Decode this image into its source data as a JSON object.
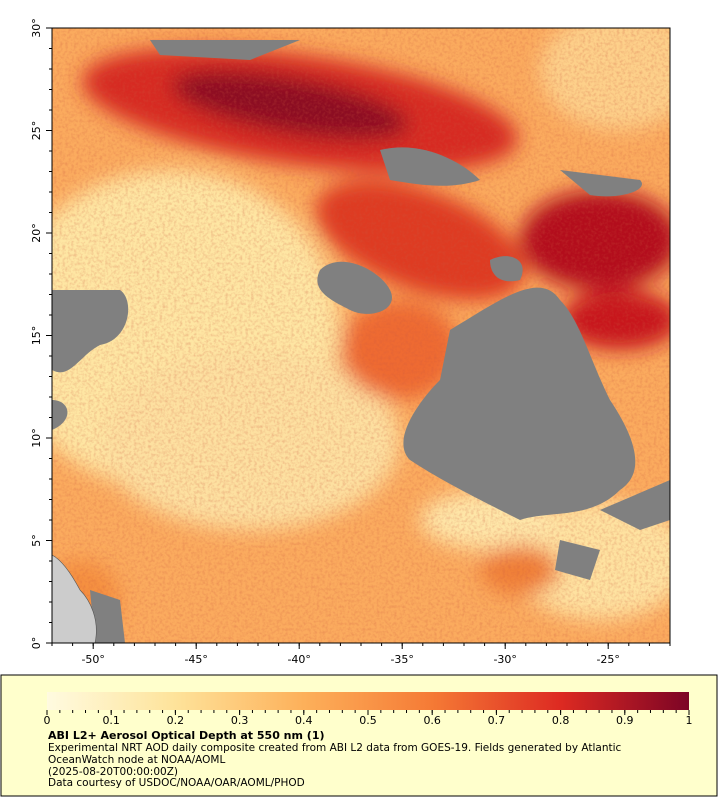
{
  "map": {
    "xlim": [
      -52,
      -22
    ],
    "ylim": [
      0,
      30
    ],
    "xticks": [
      {
        "value": -50,
        "label": "-50°"
      },
      {
        "value": -45,
        "label": "-45°"
      },
      {
        "value": -40,
        "label": "-40°"
      },
      {
        "value": -35,
        "label": "-35°"
      },
      {
        "value": -30,
        "label": "-30°"
      },
      {
        "value": -25,
        "label": "-25°"
      }
    ],
    "yticks": [
      {
        "value": 0,
        "label": "0°"
      },
      {
        "value": 5,
        "label": "5°"
      },
      {
        "value": 10,
        "label": "10°"
      },
      {
        "value": 15,
        "label": "15°"
      },
      {
        "value": 20,
        "label": "20°"
      },
      {
        "value": 25,
        "label": "25°"
      },
      {
        "value": 30,
        "label": "30°"
      }
    ]
  },
  "colorbar": {
    "lim": [
      0,
      1
    ],
    "ticks": [
      0,
      0.1,
      0.2,
      0.3,
      0.4,
      0.5,
      0.6,
      0.7,
      0.8,
      0.9,
      1
    ]
  },
  "title": "ABI L2+ Aerosol Optical Depth at 550 nm (1)",
  "caption": [
    "Experimental NRT AOD daily composite created from ABI L2 data from GOES-19. Fields generated by Atlantic",
    "OceanWatch node at NOAA/AOML",
    "(2025-08-20T00:00:00Z)",
    "Data courtesy of USDOC/NOAA/OAR/AOML/PHOD"
  ]
}
